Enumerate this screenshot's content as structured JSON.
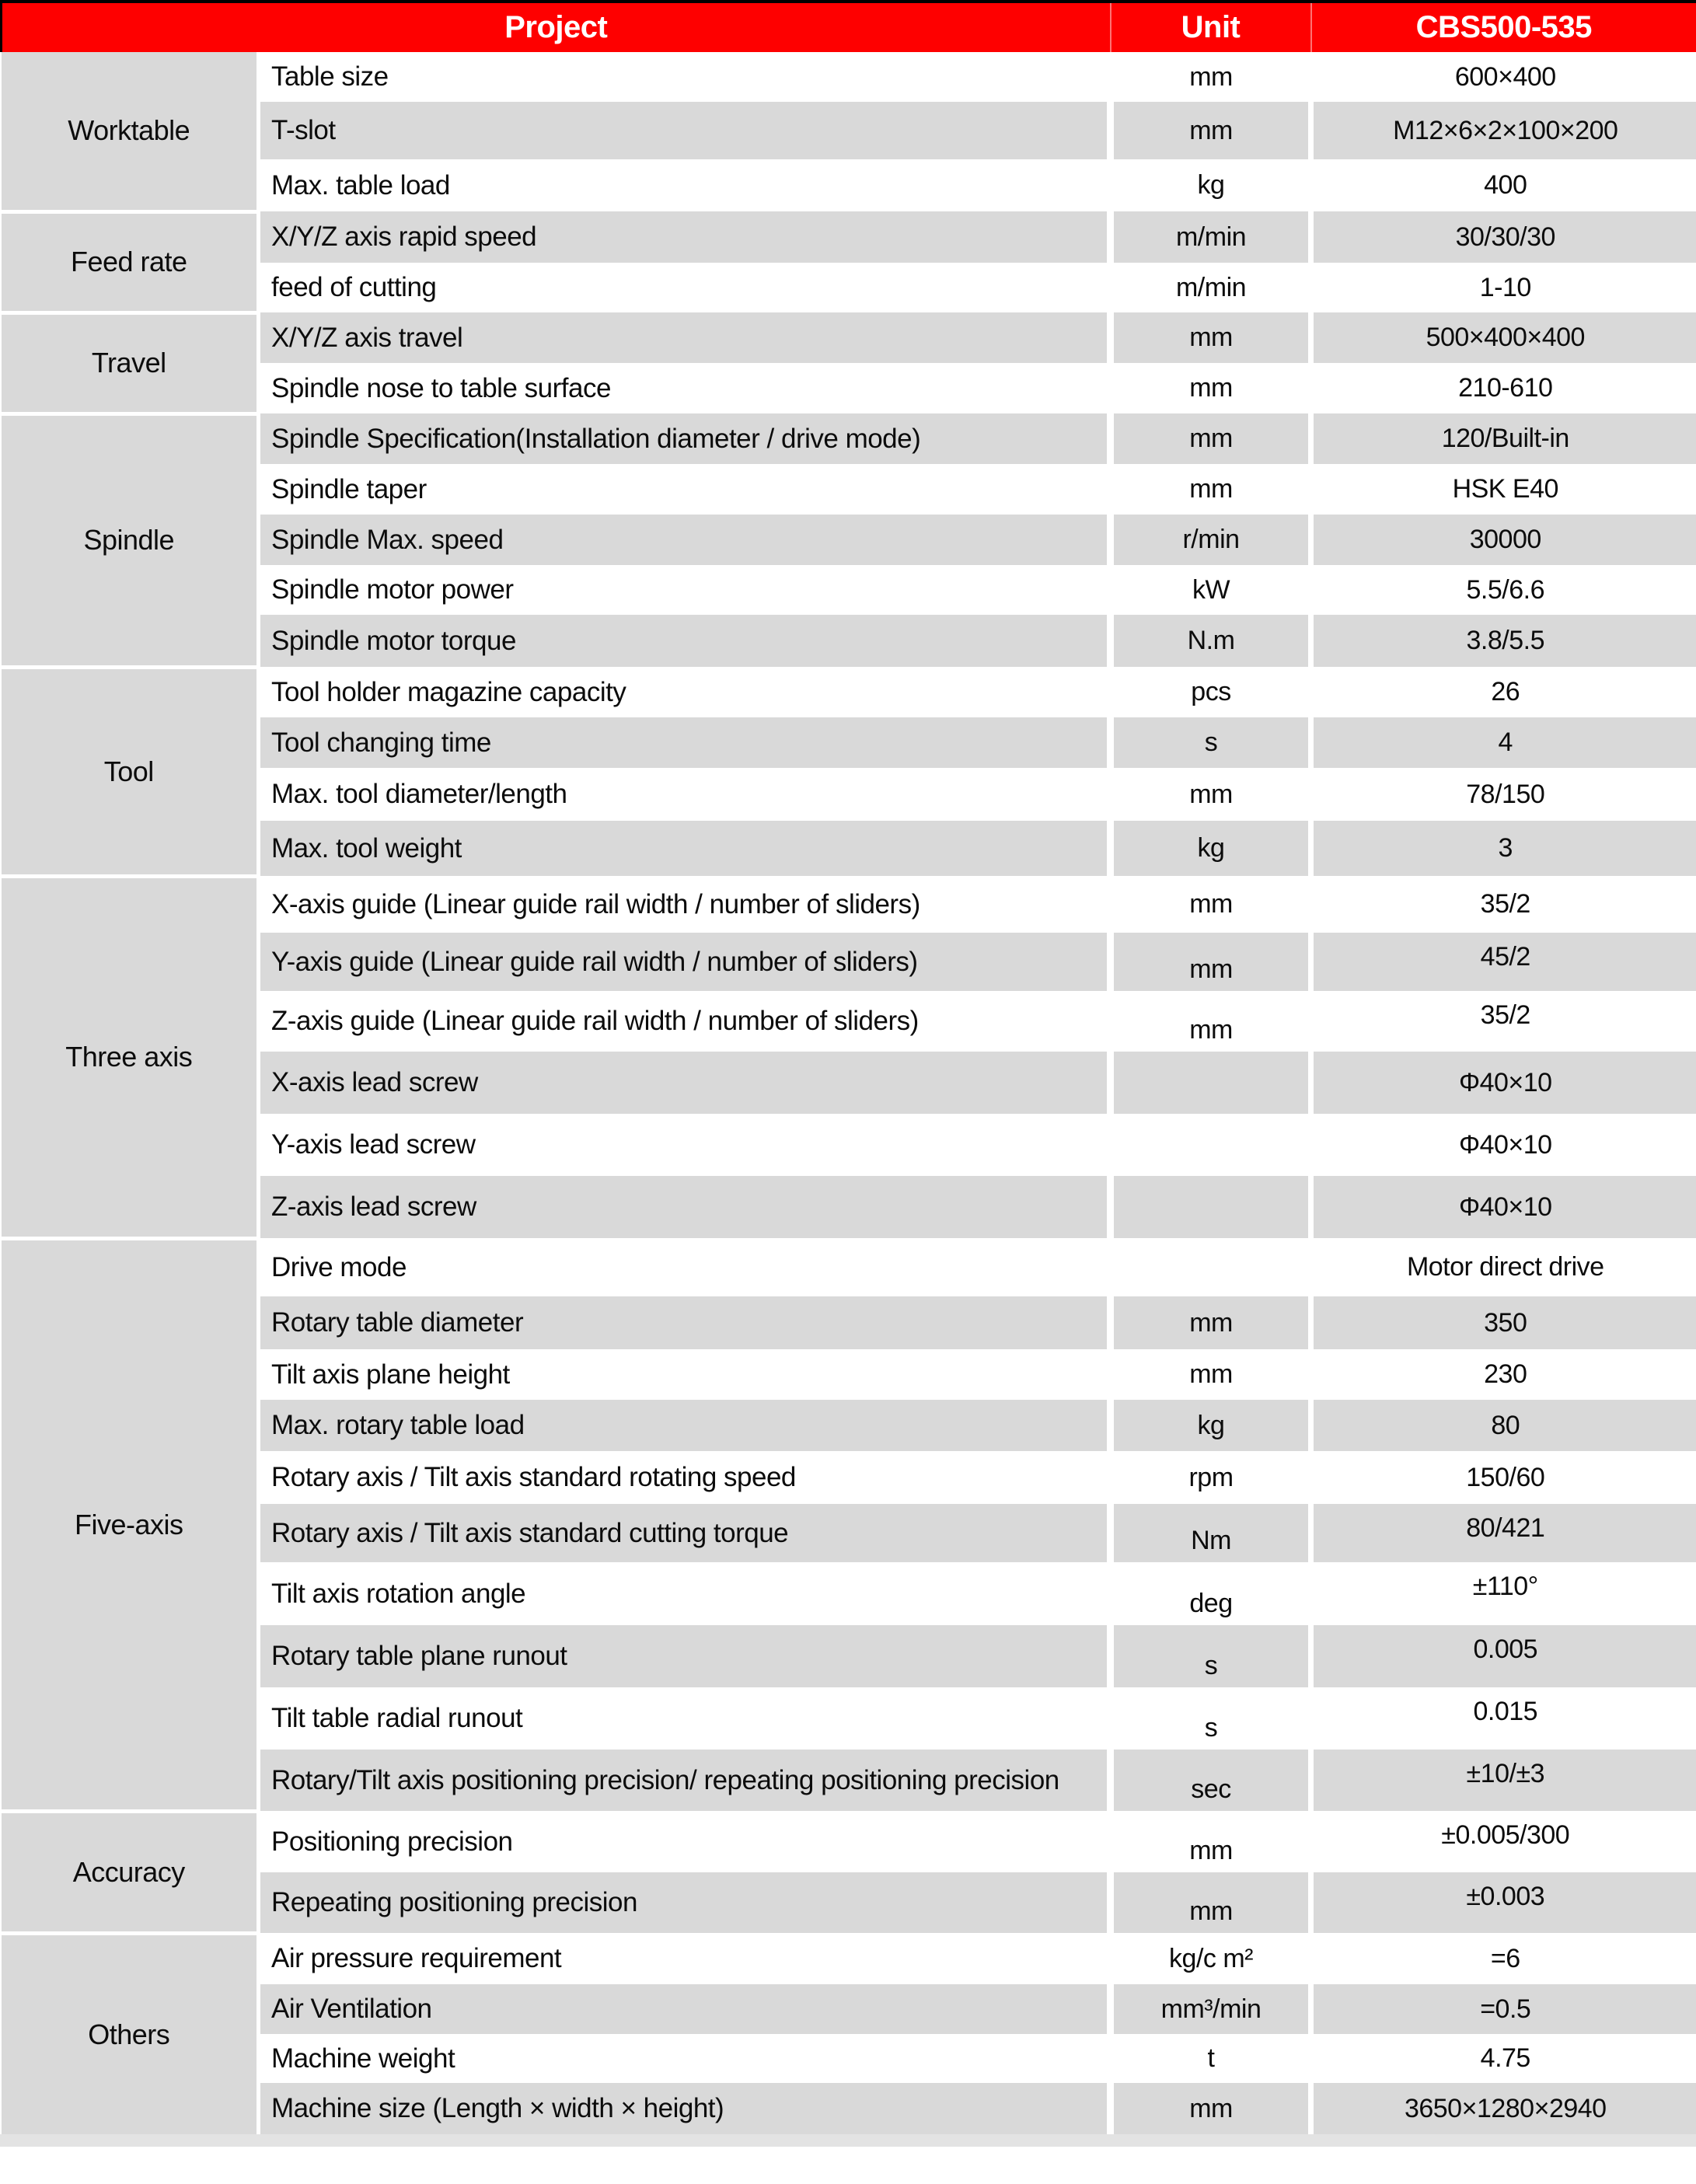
{
  "header": {
    "project": "Project",
    "unit": "Unit",
    "model": "CBS500-535"
  },
  "colors": {
    "header_bg": "#fe0000",
    "header_text": "#ffffff",
    "row_alt_bg": "#d9d9d9",
    "row_bg": "#ffffff",
    "text": "#0c0c0c"
  },
  "rows": [
    {
      "group": "Worktable",
      "label": "Table size",
      "unit": "mm",
      "value": "600×400"
    },
    {
      "group": "Worktable",
      "label": "T-slot",
      "unit": "mm",
      "value": "M12×6×2×100×200"
    },
    {
      "group": "Worktable",
      "label": "Max. table load",
      "unit": "kg",
      "value": "400"
    },
    {
      "group": "Feed rate",
      "label": "X/Y/Z axis rapid speed",
      "unit": "m/min",
      "value": "30/30/30"
    },
    {
      "group": "Feed rate",
      "label": "feed of cutting",
      "unit": "m/min",
      "value": "1-10"
    },
    {
      "group": "Travel",
      "label": "X/Y/Z axis travel",
      "unit": "mm",
      "value": "500×400×400"
    },
    {
      "group": "Travel",
      "label": "Spindle nose to table surface",
      "unit": "mm",
      "value": "210-610"
    },
    {
      "group": "Spindle",
      "label": "Spindle Specification(Installation diameter / drive mode)",
      "unit": "mm",
      "value": "120/Built-in"
    },
    {
      "group": "Spindle",
      "label": "Spindle taper",
      "unit": "mm",
      "value": "HSK E40"
    },
    {
      "group": "Spindle",
      "label": "Spindle Max. speed",
      "unit": "r/min",
      "value": "30000"
    },
    {
      "group": "Spindle",
      "label": "Spindle motor power",
      "unit": "kW",
      "value": "5.5/6.6"
    },
    {
      "group": "Spindle",
      "label": "Spindle motor torque",
      "unit": "N.m",
      "value": "3.8/5.5"
    },
    {
      "group": "Tool",
      "label": "Tool holder magazine capacity",
      "unit": "pcs",
      "value": "26"
    },
    {
      "group": "Tool",
      "label": "Tool changing time",
      "unit": "s",
      "value": "4"
    },
    {
      "group": "Tool",
      "label": "Max. tool diameter/length",
      "unit": "mm",
      "value": "78/150"
    },
    {
      "group": "Tool",
      "label": "Max. tool weight",
      "unit": "kg",
      "value": "3"
    },
    {
      "group": "Three axis",
      "label": "X-axis guide (Linear guide rail width / number of sliders)",
      "unit": "mm",
      "value": "35/2"
    },
    {
      "group": "Three axis",
      "label": "Y-axis guide (Linear guide rail width / number of sliders)",
      "unit": "mm",
      "value": "45/2"
    },
    {
      "group": "Three axis",
      "label": "Z-axis guide (Linear guide rail width / number of sliders)",
      "unit": "mm",
      "value": "35/2"
    },
    {
      "group": "Three axis",
      "label": "X-axis lead screw",
      "unit": "",
      "value": "Φ40×10"
    },
    {
      "group": "Three axis",
      "label": "Y-axis lead screw",
      "unit": "",
      "value": "Φ40×10"
    },
    {
      "group": "Three axis",
      "label": "Z-axis lead screw",
      "unit": "",
      "value": "Φ40×10"
    },
    {
      "group": "Five-axis",
      "label": "Drive mode",
      "unit": "",
      "value": "Motor direct drive"
    },
    {
      "group": "Five-axis",
      "label": "Rotary table diameter",
      "unit": "mm",
      "value": "350"
    },
    {
      "group": "Five-axis",
      "label": "Tilt axis plane height",
      "unit": "mm",
      "value": "230"
    },
    {
      "group": "Five-axis",
      "label": "Max. rotary table load",
      "unit": "kg",
      "value": "80"
    },
    {
      "group": "Five-axis",
      "label": "Rotary axis / Tilt axis standard rotating speed",
      "unit": "rpm",
      "value": "150/60"
    },
    {
      "group": "Five-axis",
      "label": "Rotary axis / Tilt axis standard cutting torque",
      "unit": "Nm",
      "value": "80/421"
    },
    {
      "group": "Five-axis",
      "label": "Tilt axis rotation angle",
      "unit": "deg",
      "value": "±110°"
    },
    {
      "group": "Five-axis",
      "label": "Rotary table plane runout",
      "unit": "s",
      "value": "0.005"
    },
    {
      "group": "Five-axis",
      "label": "Tilt table radial runout",
      "unit": "s",
      "value": "0.015"
    },
    {
      "group": "Five-axis",
      "label": "Rotary/Tilt axis positioning precision/ repeating positioning precision",
      "unit": "sec",
      "value": "±10/±3"
    },
    {
      "group": "Accuracy",
      "label": "Positioning precision",
      "unit": "mm",
      "value": "±0.005/300"
    },
    {
      "group": "Accuracy",
      "label": "Repeating positioning precision",
      "unit": "mm",
      "value": "±0.003"
    },
    {
      "group": "Others",
      "label": "Air pressure requirement",
      "unit": "kg/c m²",
      "value": "=6"
    },
    {
      "group": "Others",
      "label": "Air Ventilation",
      "unit": "mm³/min",
      "value": "=0.5"
    },
    {
      "group": "Others",
      "label": "Machine weight",
      "unit": "t",
      "value": "4.75"
    },
    {
      "group": "Others",
      "label": "Machine size (Length × width × height)",
      "unit": "mm",
      "value": "3650×1280×2940"
    }
  ]
}
